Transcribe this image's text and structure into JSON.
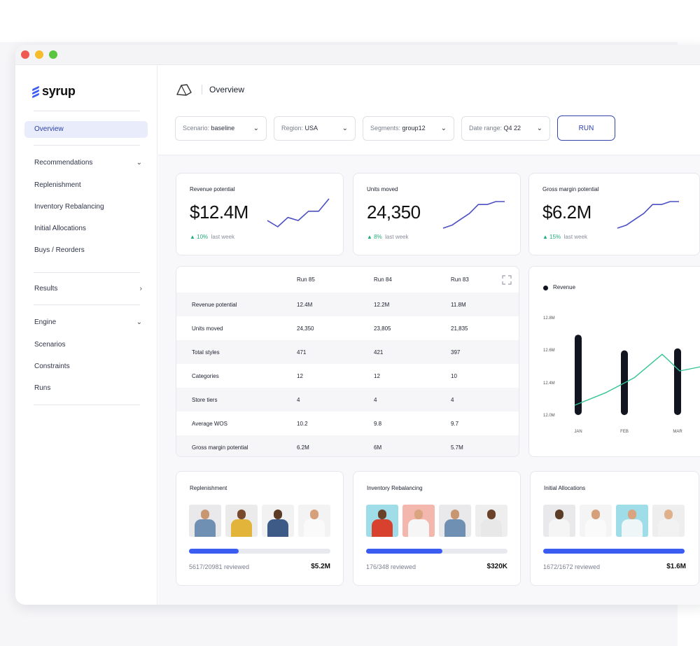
{
  "brand": {
    "name": "syrup"
  },
  "sidebar": {
    "items": [
      {
        "label": "Overview"
      },
      {
        "label": "Recommendations"
      },
      {
        "label": "Replenishment"
      },
      {
        "label": "Inventory Rebalancing"
      },
      {
        "label": "Initial Allocations"
      },
      {
        "label": "Buys / Reorders"
      },
      {
        "label": "Results"
      },
      {
        "label": "Engine"
      },
      {
        "label": "Scenarios"
      },
      {
        "label": "Constraints"
      },
      {
        "label": "Runs"
      }
    ]
  },
  "header": {
    "title": "Overview",
    "filters": [
      {
        "label": "Scenario:",
        "value": "baseline"
      },
      {
        "label": "Region:",
        "value": "USA"
      },
      {
        "label": "Segments:",
        "value": "group12"
      },
      {
        "label": "Date range:",
        "value": "Q4 22"
      }
    ],
    "run_label": "RUN"
  },
  "kpis": [
    {
      "label": "Revenue potential",
      "value": "$12.4M",
      "delta": "10%",
      "delta_suffix": "last week",
      "trend": [
        3,
        1,
        4,
        3,
        6,
        6,
        10
      ]
    },
    {
      "label": "Units moved",
      "value": "24,350",
      "delta": "8%",
      "delta_suffix": "last week",
      "trend": [
        1,
        2,
        4,
        6,
        9,
        9,
        10,
        10
      ]
    },
    {
      "label": "Gross margin potential",
      "value": "$6.2M",
      "delta": "15%",
      "delta_suffix": "last week",
      "trend": [
        1,
        2,
        4,
        6,
        9,
        9,
        10,
        10
      ]
    }
  ],
  "runs_table": {
    "columns": [
      "",
      "Run 85",
      "Run 84",
      "Run 83"
    ],
    "rows": [
      [
        "Revenue potential",
        "12.4M",
        "12.2M",
        "11.8M"
      ],
      [
        "Units moved",
        "24,350",
        "23,805",
        "21,835"
      ],
      [
        "Total styles",
        "471",
        "421",
        "397"
      ],
      [
        "Categories",
        "12",
        "12",
        "10"
      ],
      [
        "Store tiers",
        "4",
        "4",
        "4"
      ],
      [
        "Average WOS",
        "10.2",
        "9.8",
        "9.7"
      ],
      [
        "Gross margin potential",
        "6.2M",
        "6M",
        "5.7M"
      ]
    ]
  },
  "chart_data": {
    "type": "bar",
    "legend": [
      "Revenue"
    ],
    "categories": [
      "JAN",
      "FEB",
      "MAR"
    ],
    "yticks": [
      "12.8M",
      "12.6M",
      "12.4M",
      "12.0M"
    ],
    "series": [
      {
        "name": "Revenue",
        "values": [
          12.82,
          12.66,
          12.68
        ]
      }
    ],
    "line": [
      12.1,
      12.23,
      12.38,
      12.62,
      12.45,
      12.5
    ],
    "ylim": [
      12.0,
      13.0
    ],
    "colors": {
      "bar": "#121420",
      "line": "#34c494"
    }
  },
  "reviews": [
    {
      "title": "Replenishment",
      "count": "5617/20981 reviewed",
      "amount": "$5.2M",
      "progress": 0.35,
      "people": [
        {
          "bg": "#e9e9ec",
          "shirt": "#6f90b3",
          "skin": "#c99672"
        },
        {
          "bg": "#ebebeb",
          "shirt": "#e2b43a",
          "skin": "#7a4a2c"
        },
        {
          "bg": "#f2f2f2",
          "shirt": "#3d5b86",
          "skin": "#5b3b26"
        },
        {
          "bg": "#f3f3f3",
          "shirt": "#fafafa",
          "skin": "#d6a07a"
        }
      ]
    },
    {
      "title": "Inventory Rebalancing",
      "count": "176/348 reviewed",
      "amount": "$320K",
      "progress": 0.54,
      "people": [
        {
          "bg": "#9fdde8",
          "shirt": "#d9412f",
          "skin": "#6a4129"
        },
        {
          "bg": "#f3b7ae",
          "shirt": "#f6f6f6",
          "skin": "#d9a47f"
        },
        {
          "bg": "#e9e9ec",
          "shirt": "#6f90b3",
          "skin": "#c99672"
        },
        {
          "bg": "#eeeeee",
          "shirt": "#e8e8e8",
          "skin": "#6a4129"
        }
      ]
    },
    {
      "title": "Initial Allocations",
      "count": "1672/1672 reviewed",
      "amount": "$1.6M",
      "progress": 1.0,
      "people": [
        {
          "bg": "#e9e9ec",
          "shirt": "#f5f5f5",
          "skin": "#5b3b26"
        },
        {
          "bg": "#f4f4f4",
          "shirt": "#fafafa",
          "skin": "#d6a07a"
        },
        {
          "bg": "#9fdde8",
          "shirt": "#eef6f8",
          "skin": "#d9a47f"
        },
        {
          "bg": "#eeeeee",
          "shirt": "#f2f2f2",
          "skin": "#e0b08a"
        }
      ]
    }
  ]
}
